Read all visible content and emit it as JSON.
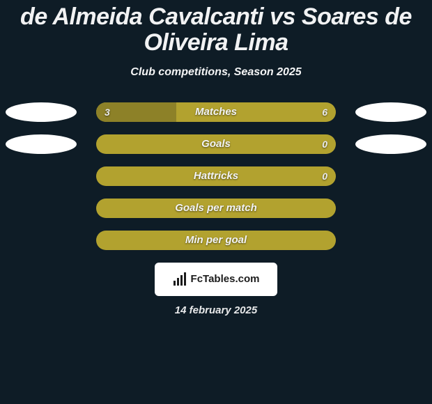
{
  "colors": {
    "background": "#0e1c26",
    "title_text": "#f1f2f3",
    "subtitle_text": "#f4f5f6",
    "bar_base": "#b2a22f",
    "bar_highlight": "#8d8128",
    "bar_text": "#f3f4f5",
    "value_text": "#e9eaeb",
    "pill_fill": "#ffffff",
    "logo_bg": "#ffffff",
    "logo_text": "#1b1b1b",
    "date_text": "#e8e9ea"
  },
  "typography": {
    "title_fontsize": 34,
    "subtitle_fontsize": 16,
    "bar_label_fontsize": 15,
    "bar_value_fontsize": 14,
    "date_fontsize": 15
  },
  "title": "de Almeida Cavalcanti vs Soares de Oliveira Lima",
  "subtitle": "Club competitions, Season 2025",
  "rows": [
    {
      "label": "Matches",
      "left_value": "3",
      "right_value": "6",
      "left_fill_pct": 33.3,
      "show_left_pill": true,
      "show_right_pill": true
    },
    {
      "label": "Goals",
      "left_value": "",
      "right_value": "0",
      "left_fill_pct": 0,
      "show_left_pill": true,
      "show_right_pill": true
    },
    {
      "label": "Hattricks",
      "left_value": "",
      "right_value": "0",
      "left_fill_pct": 0,
      "show_left_pill": false,
      "show_right_pill": false
    },
    {
      "label": "Goals per match",
      "left_value": "",
      "right_value": "",
      "left_fill_pct": 0,
      "show_left_pill": false,
      "show_right_pill": false
    },
    {
      "label": "Min per goal",
      "left_value": "",
      "right_value": "",
      "left_fill_pct": 0,
      "show_left_pill": false,
      "show_right_pill": false
    }
  ],
  "logo": {
    "text": "FcTables.com"
  },
  "date": "14 february 2025"
}
